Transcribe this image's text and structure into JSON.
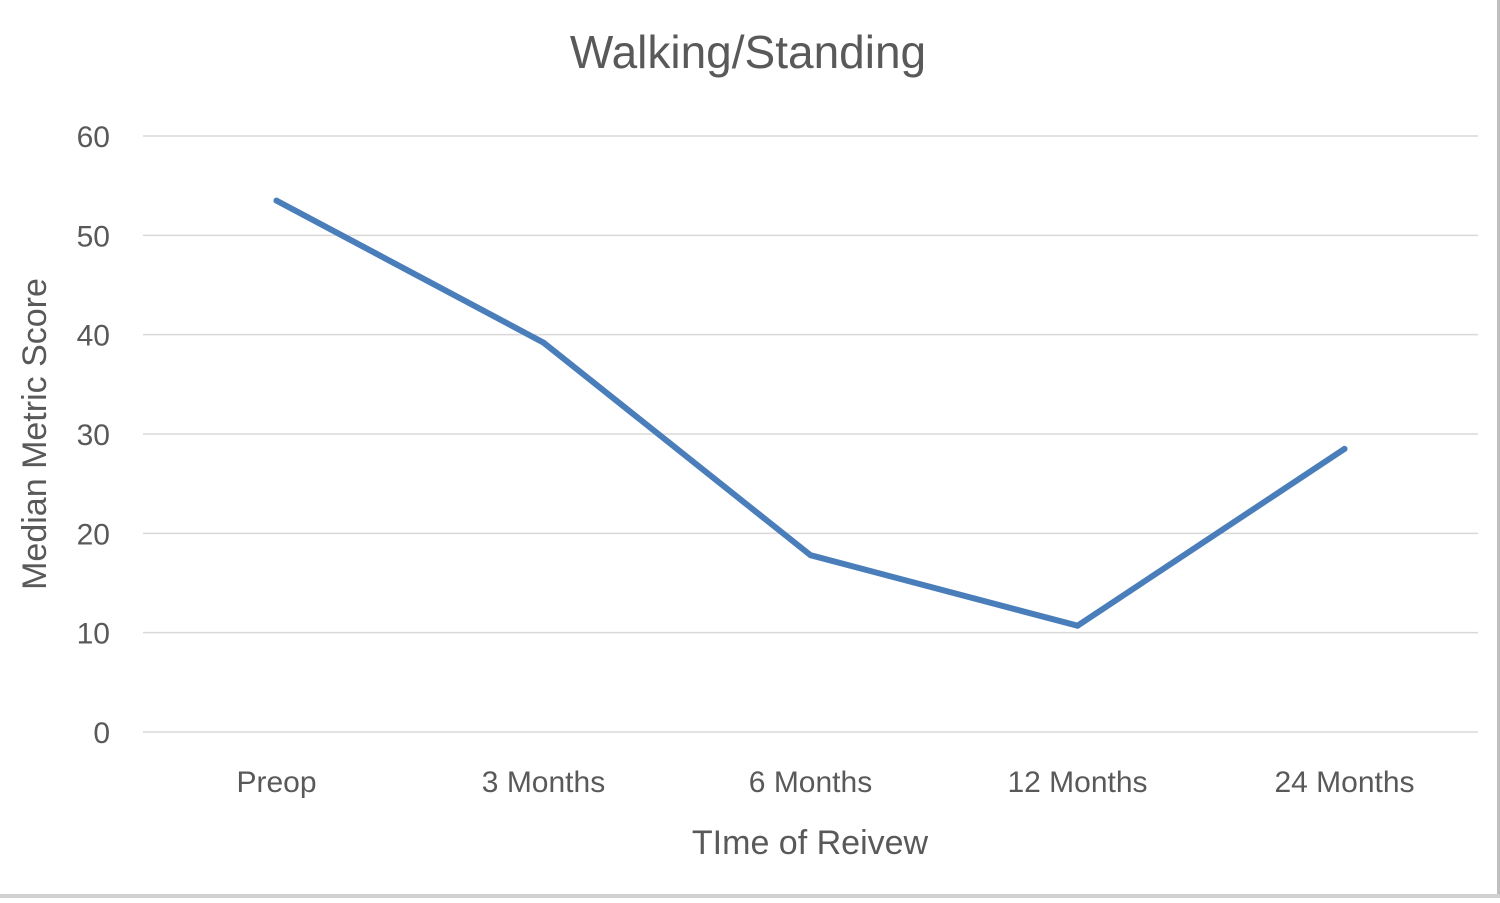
{
  "chart_data": {
    "type": "line",
    "title": "Walking/Standing",
    "xlabel": "TIme of Reivew",
    "ylabel": "Median Metric Score",
    "categories": [
      "Preop",
      "3 Months",
      "6 Months",
      "12 Months",
      "24 Months"
    ],
    "series": [
      {
        "values": [
          53.5,
          39.2,
          17.8,
          10.7,
          28.5
        ]
      }
    ],
    "ylim": [
      0,
      60
    ],
    "yticks": [
      0,
      10,
      20,
      30,
      40,
      50,
      60
    ],
    "ytick_labels": [
      "0",
      "10",
      "20",
      "30",
      "40",
      "50",
      "60"
    ],
    "grid": true,
    "legend": "none",
    "colors": {
      "line": "#4a7ebb",
      "grid": "#d9d9d9",
      "text": "#595959"
    }
  }
}
